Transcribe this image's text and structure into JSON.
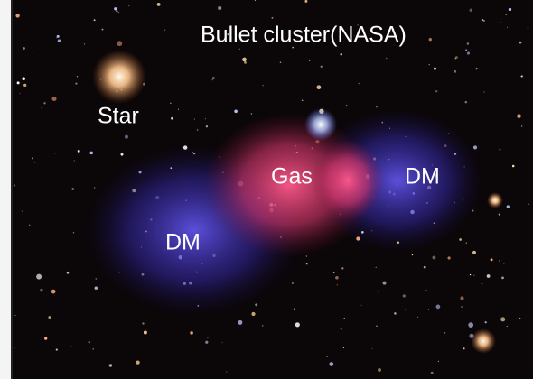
{
  "image": {
    "title": "Bullet cluster(NASA)",
    "labels": [
      "Star",
      "Gas",
      "DM",
      "DM"
    ]
  }
}
